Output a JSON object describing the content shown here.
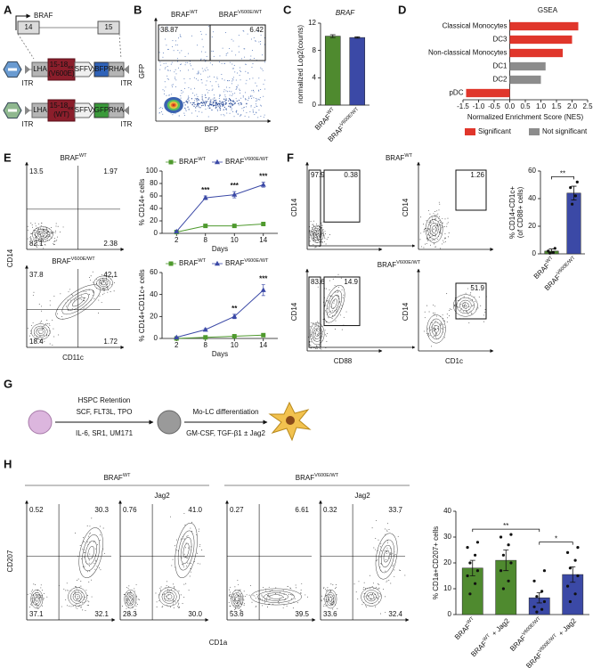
{
  "panel_labels": [
    "A",
    "B",
    "C",
    "D",
    "E",
    "F",
    "G",
    "H"
  ],
  "diagram_a": {
    "gene": "BRAF",
    "exons": [
      "14",
      "15"
    ],
    "constructs": [
      {
        "itr": "ITR",
        "lha": "LHA",
        "insert": "15-18",
        "insert_sub": "ex",
        "variant": "(V600E)",
        "promoter": "SFFV",
        "reporter": "BFP",
        "rha": "RHA"
      },
      {
        "itr": "ITR",
        "lha": "LHA",
        "insert": "15-18",
        "insert_sub": "ex",
        "variant": "(WT)",
        "promoter": "SFFV",
        "reporter": "GFP",
        "rha": "RHA"
      }
    ]
  },
  "flow_b": {
    "ylabel": "GFP",
    "xlabel": "BFP",
    "gates": [
      {
        "name": "BRAF",
        "sup": "WT",
        "percent": "38.87"
      },
      {
        "name": "BRAF",
        "sup": "V600E/WT",
        "percent": "6.42"
      }
    ]
  },
  "flow_e": {
    "ylabel": "CD14",
    "xlabel": "CD11c",
    "plots": [
      {
        "title": "BRAF",
        "title_sup": "WT",
        "quadrants": [
          "13.5",
          "1.97",
          "82.1",
          "2.38"
        ]
      },
      {
        "title": "BRAF",
        "title_sup": "V600E/WT",
        "quadrants": [
          "37.8",
          "42.1",
          "18.4",
          "1.72"
        ]
      }
    ]
  },
  "flow_f": {
    "ylabel": "CD14",
    "xlabels": [
      "CD88",
      "CD1c"
    ],
    "rows": [
      {
        "title": "BRAF",
        "title_sup": "WT",
        "gated": [
          "97.9",
          "0.38"
        ],
        "sorted": [
          "1.26"
        ]
      },
      {
        "title": "BRAF",
        "title_sup": "V600E/WT",
        "gated": [
          "83.6",
          "14.9"
        ],
        "sorted": [
          "51.9"
        ]
      }
    ]
  },
  "workflow_g": {
    "steps": [
      {
        "title": "HSPC Retention",
        "lines": [
          "SCF, FLT3L, TPO",
          "IL-6, SR1, UM171"
        ]
      },
      {
        "title": "Mo-LC differentiation",
        "lines": [
          "GM-CSF, TGF-β1 ± Jag2"
        ]
      }
    ]
  },
  "flow_h": {
    "ylabel": "CD207",
    "xlabel": "CD1a",
    "groups": [
      {
        "name": "BRAF",
        "sup": "WT",
        "treatment": "Jag2"
      },
      {
        "name": "BRAF",
        "sup": "V600E/WT",
        "treatment": "Jag2"
      }
    ],
    "plots": [
      {
        "quadrants": [
          "0.52",
          "30.3",
          "37.1",
          "32.1"
        ]
      },
      {
        "quadrants": [
          "0.76",
          "41.0",
          "28.3",
          "30.0"
        ]
      },
      {
        "quadrants": [
          "0.27",
          "6.61",
          "53.6",
          "39.5"
        ]
      },
      {
        "quadrants": [
          "0.32",
          "33.7",
          "33.6",
          "32.4"
        ]
      }
    ]
  },
  "chart_data": [
    {
      "type": "bar",
      "title": "BRAF",
      "ylabel": [
        "normalized Log2(counts)"
      ],
      "categories": [
        "BRAF",
        "BRAF"
      ],
      "category_sups": [
        "WT",
        "V600E/WT"
      ],
      "values": [
        10.1,
        9.9
      ],
      "errors": [
        0.2,
        0.1
      ],
      "colors": [
        "#4f8a2f",
        "#3b49a6"
      ],
      "ylim": [
        0,
        12
      ],
      "yticks": [
        0,
        4,
        8,
        12
      ]
    },
    {
      "type": "hbar",
      "title": "GSEA",
      "xlabel": "Normalized Enrichment Score (NES)",
      "categories": [
        "Classical Monocytes",
        "DC3",
        "Non-classical Monocytes",
        "DC1",
        "DC2",
        "pDC"
      ],
      "values": [
        2.2,
        2.0,
        1.7,
        1.15,
        1.0,
        -1.4
      ],
      "colors": [
        "#e0362b",
        "#e0362b",
        "#e0362b",
        "#8c8c8c",
        "#8c8c8c",
        "#e0362b"
      ],
      "xlim": [
        -1.5,
        2.5
      ],
      "xticks": [
        -1.5,
        {
          "value": -1,
          "label": "-1.0"
        },
        -0.5,
        {
          "value": 0,
          "label": "0.0"
        },
        0.5,
        {
          "value": 1,
          "label": "1.0"
        },
        1.5,
        {
          "value": 2,
          "label": "2.0"
        },
        2.5
      ],
      "legend": [
        {
          "name": "Significant",
          "color": "#e0362b"
        },
        {
          "name": "Not significant",
          "color": "#8c8c8c"
        }
      ]
    },
    {
      "type": "line",
      "ylabel": [
        "% CD14+ cells"
      ],
      "xlabel": "Days",
      "categories": [
        "2",
        "8",
        "10",
        "14"
      ],
      "ylim": [
        0,
        100
      ],
      "yticks": [
        0,
        20,
        40,
        60,
        80,
        100
      ],
      "series": [
        {
          "name": "BRAF",
          "name_sup": "WT",
          "color": "#4f9a2e",
          "marker": "square",
          "values": [
            2,
            12,
            12,
            15
          ],
          "errors": [
            0.5,
            1,
            1,
            1
          ]
        },
        {
          "name": "BRAF",
          "name_sup": "V600E/WT",
          "color": "#3b49a6",
          "marker": "triangle",
          "values": [
            3,
            57,
            62,
            78
          ],
          "errors": [
            0.5,
            3,
            5,
            4
          ]
        }
      ],
      "annotations": [
        {
          "text": "***",
          "category": "8"
        },
        {
          "text": "***",
          "category": "10"
        },
        {
          "text": "***",
          "category": "14"
        }
      ]
    },
    {
      "type": "line",
      "ylabel": [
        "% CD14+CD11c+ cells"
      ],
      "xlabel": "Days",
      "categories": [
        "2",
        "8",
        "10",
        "14"
      ],
      "ylim": [
        0,
        60
      ],
      "yticks": [
        0,
        20,
        40,
        60
      ],
      "series": [
        {
          "name": "BRAF",
          "name_sup": "WT",
          "color": "#4f9a2e",
          "marker": "square",
          "values": [
            0,
            1,
            2,
            3
          ],
          "errors": [
            0.2,
            0.3,
            0.5,
            0.5
          ]
        },
        {
          "name": "BRAF",
          "name_sup": "V600E/WT",
          "color": "#3b49a6",
          "marker": "triangle",
          "values": [
            1,
            8,
            20,
            44
          ],
          "errors": [
            0.3,
            1,
            2,
            5
          ]
        }
      ],
      "annotations": [
        {
          "text": "**",
          "category": "10"
        },
        {
          "text": "***",
          "category": "14"
        }
      ]
    },
    {
      "type": "bar",
      "ylabel": [
        "% CD14+CD1c+",
        "(of CD88+ cells)"
      ],
      "categories": [
        "BRAF",
        "BRAF"
      ],
      "category_sups": [
        "WT",
        "V600E/WT"
      ],
      "values": [
        2,
        44
      ],
      "errors": [
        1.5,
        5
      ],
      "points": [
        [
          0.5,
          1,
          2,
          4
        ],
        [
          36,
          42,
          48,
          52
        ]
      ],
      "colors": [
        "#4f8a2f",
        "#3b49a6"
      ],
      "ylim": [
        0,
        60
      ],
      "yticks": [
        0,
        20,
        40,
        60
      ],
      "significance": [
        {
          "text": "**",
          "from": 0,
          "to": 1
        }
      ]
    },
    {
      "type": "bar",
      "ylabel": [
        "% CD1a+CD207+ cells"
      ],
      "categories": [
        "BRAF",
        "BRAF",
        "BRAF",
        "BRAF"
      ],
      "category_sups": [
        "WT",
        "WT",
        "V600E/WT",
        "V600E/WT"
      ],
      "category_suffixes": [
        null,
        "+ Jag2",
        null,
        "+ Jag2"
      ],
      "values": [
        18,
        21,
        6.5,
        15.5
      ],
      "errors": [
        3,
        4,
        2,
        3
      ],
      "points": [
        [
          8,
          12,
          15,
          17,
          20,
          23,
          26,
          28
        ],
        [
          10,
          13,
          17,
          20,
          23,
          27,
          30,
          31
        ],
        [
          1,
          2,
          3,
          5,
          7,
          9,
          13,
          17
        ],
        [
          5,
          8,
          11,
          15,
          18,
          21,
          24,
          26
        ]
      ],
      "colors": [
        "#4f8a2f",
        "#4f8a2f",
        "#3b49a6",
        "#3b49a6"
      ],
      "ylim": [
        0,
        40
      ],
      "yticks": [
        0,
        10,
        20,
        30,
        40
      ],
      "significance": [
        {
          "text": "**",
          "from": 0,
          "to": 2
        },
        {
          "text": "*",
          "from": 2,
          "to": 3
        }
      ]
    }
  ]
}
